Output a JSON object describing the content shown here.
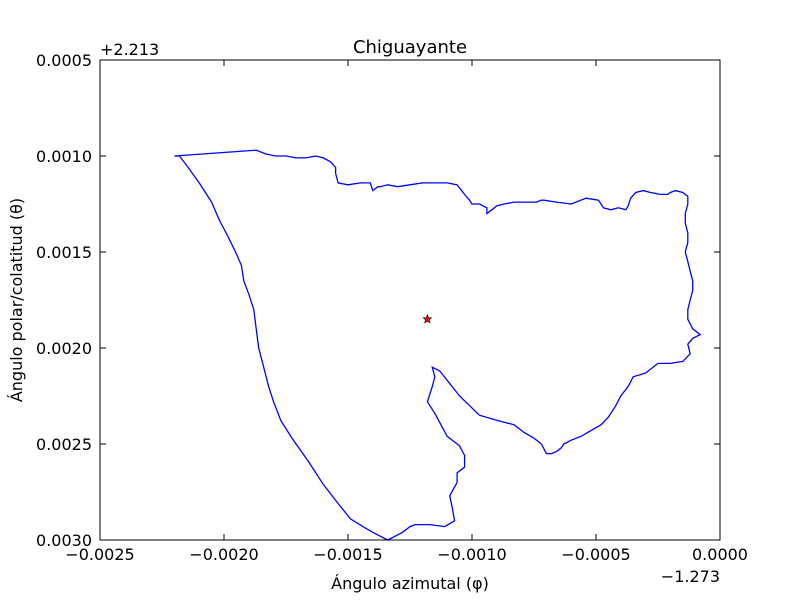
{
  "chart_data": {
    "type": "line",
    "title": "Chiguayante",
    "xlabel": "Ángulo azimutal (φ)",
    "ylabel": "Ángulo polar/colatitud (θ)",
    "x_offset_label": "−1.273",
    "y_offset_label": "+2.213",
    "xlim": [
      -0.0025,
      0.0
    ],
    "ylim": [
      0.003,
      0.0005
    ],
    "x_ticks": [
      -0.0025,
      -0.002,
      -0.0015,
      -0.001,
      -0.0005,
      0.0
    ],
    "x_tick_labels": [
      "−0.0025",
      "−0.0020",
      "−0.0015",
      "−0.0010",
      "−0.0005",
      "0.0000"
    ],
    "y_ticks": [
      0.0005,
      0.001,
      0.0015,
      0.002,
      0.0025,
      0.003
    ],
    "y_tick_labels": [
      "0.0005",
      "0.0010",
      "0.0015",
      "0.0020",
      "0.0025",
      "0.0030"
    ],
    "series": [
      {
        "color": "#0000ff",
        "x": [
          -0.0022,
          -0.00187,
          -0.00183,
          -0.00179,
          -0.00175,
          -0.00171,
          -0.00167,
          -0.00163,
          -0.0016,
          -0.00157,
          -0.00155,
          -0.00155,
          -0.00154,
          -0.0015,
          -0.00145,
          -0.00141,
          -0.0014,
          -0.00138,
          -0.00137,
          -0.00134,
          -0.0013,
          -0.00125,
          -0.0012,
          -0.00115,
          -0.0011,
          -0.00106,
          -0.00103,
          -0.00101,
          -0.001,
          -0.00097,
          -0.00094,
          -0.00094,
          -0.00093,
          -0.0009,
          -0.00087,
          -0.00083,
          -0.00078,
          -0.00074,
          -0.00072,
          -0.00071,
          -0.00066,
          -0.0006,
          -0.00054,
          -0.00049,
          -0.00048,
          -0.00047,
          -0.00044,
          -0.00041,
          -0.00038,
          -0.00037,
          -0.00036,
          -0.00034,
          -0.00031,
          -0.00028,
          -0.00024,
          -0.00021,
          -0.0002,
          -0.00018,
          -0.00015,
          -0.00013,
          -0.00013,
          -0.00014,
          -0.00014,
          -0.00013,
          -0.00013,
          -0.00014,
          -0.00013,
          -0.00012,
          -0.00011,
          -0.00011,
          -0.00012,
          -0.00013,
          -0.00013,
          -0.00011,
          -8e-05,
          -0.00011,
          -0.00013,
          -0.00012,
          -0.00015,
          -0.0002,
          -0.00025,
          -0.0003,
          -0.00035,
          -0.00037,
          -0.0004,
          -0.00042,
          -0.00045,
          -0.00048,
          -0.00052,
          -0.00056,
          -0.0006,
          -0.00063,
          -0.00064,
          -0.00065,
          -0.00066,
          -0.00068,
          -0.0007,
          -0.00072,
          -0.00075,
          -0.00079,
          -0.00083,
          -0.00089,
          -0.00097,
          -0.00105,
          -0.00113,
          -0.00116,
          -0.00115,
          -0.00116,
          -0.00118,
          -0.00115,
          -0.0011,
          -0.00105,
          -0.00103,
          -0.00103,
          -0.00106,
          -0.00106,
          -0.00109,
          -0.00108,
          -0.00107,
          -0.00111,
          -0.00117,
          -0.0012,
          -0.00123,
          -0.00125,
          -0.00128,
          -0.00131,
          -0.00134,
          -0.00137,
          -0.0014,
          -0.00144,
          -0.00149,
          -0.00154,
          -0.0016,
          -0.00166,
          -0.00172,
          -0.00177,
          -0.0018,
          -0.00182,
          -0.00184,
          -0.00186,
          -0.00187,
          -0.00188,
          -0.0019,
          -0.00192,
          -0.00193,
          -0.00195,
          -0.00198,
          -0.00202,
          -0.00205,
          -0.0021,
          -0.00215,
          -0.00218,
          -0.0022
        ],
        "y": [
          0.001,
          0.00097,
          0.00099,
          0.001,
          0.001,
          0.00101,
          0.00101,
          0.001,
          0.00101,
          0.00103,
          0.00106,
          0.00109,
          0.00114,
          0.00115,
          0.00114,
          0.00114,
          0.00118,
          0.00116,
          0.00116,
          0.00115,
          0.00116,
          0.00115,
          0.00114,
          0.00114,
          0.00114,
          0.00115,
          0.0012,
          0.00123,
          0.00125,
          0.00125,
          0.00127,
          0.0013,
          0.00129,
          0.00126,
          0.00125,
          0.00124,
          0.00124,
          0.00124,
          0.00123,
          0.00123,
          0.00124,
          0.00125,
          0.00122,
          0.00123,
          0.00125,
          0.00127,
          0.00128,
          0.00127,
          0.00128,
          0.00126,
          0.00122,
          0.00119,
          0.00118,
          0.00119,
          0.0012,
          0.0012,
          0.00119,
          0.00118,
          0.00119,
          0.00121,
          0.00125,
          0.0013,
          0.00135,
          0.0014,
          0.00145,
          0.0015,
          0.00155,
          0.0016,
          0.00165,
          0.0017,
          0.00175,
          0.0018,
          0.00185,
          0.0019,
          0.00193,
          0.00195,
          0.00198,
          0.00203,
          0.00207,
          0.00208,
          0.00208,
          0.00213,
          0.00215,
          0.0022,
          0.00225,
          0.0023,
          0.00236,
          0.0024,
          0.00243,
          0.00246,
          0.00248,
          0.0025,
          0.00252,
          0.00253,
          0.00254,
          0.00255,
          0.00255,
          0.0025,
          0.00247,
          0.00244,
          0.0024,
          0.00238,
          0.00235,
          0.00225,
          0.00212,
          0.0021,
          0.00215,
          0.0022,
          0.00228,
          0.00234,
          0.00246,
          0.00251,
          0.00256,
          0.00262,
          0.00265,
          0.0027,
          0.00277,
          0.00283,
          0.0029,
          0.00293,
          0.00292,
          0.00292,
          0.00292,
          0.00293,
          0.00296,
          0.00298,
          0.003,
          0.00298,
          0.00296,
          0.00293,
          0.00289,
          0.00281,
          0.00271,
          0.00259,
          0.00248,
          0.00238,
          0.00228,
          0.0022,
          0.0021,
          0.002,
          0.0019,
          0.0018,
          0.00172,
          0.00165,
          0.00157,
          0.00151,
          0.00143,
          0.00133,
          0.00124,
          0.00114,
          0.00105,
          0.001,
          0.001
        ]
      }
    ],
    "marker": {
      "x": -0.00118,
      "y": 0.00185,
      "shape": "star",
      "color": "#ff0000"
    }
  }
}
